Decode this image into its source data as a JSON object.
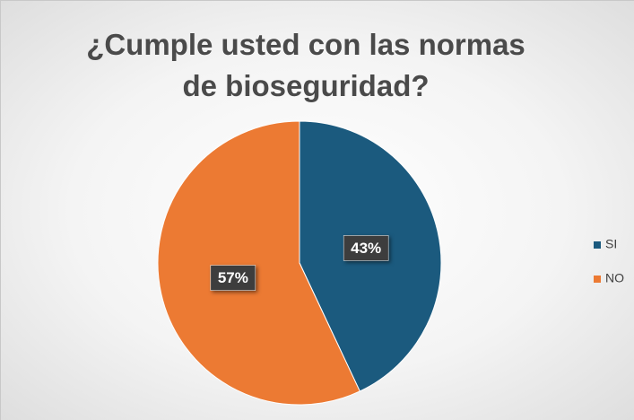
{
  "chart_data": {
    "type": "pie",
    "title": "¿Cumple usted con las normas de bioseguridad?",
    "categories": [
      "SI",
      "NO"
    ],
    "values": [
      43,
      57
    ],
    "value_labels": [
      "43%",
      "57%"
    ],
    "colors": [
      "#1b5a7e",
      "#ec7a33"
    ],
    "legend": "right"
  }
}
